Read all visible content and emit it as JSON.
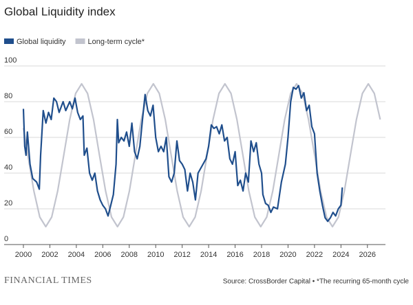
{
  "chart_data": {
    "type": "line",
    "title": "Global Liquidity index",
    "source": "Source: CrossBorder Capital • *The recurring 65-month cycle",
    "publisher": "FINANCIAL TIMES",
    "xlim": [
      2000,
      2027
    ],
    "ylim": [
      0,
      100
    ],
    "xticks": [
      2000,
      2002,
      2004,
      2006,
      2008,
      2010,
      2012,
      2014,
      2016,
      2018,
      2020,
      2022,
      2024,
      2026
    ],
    "yticks": [
      0,
      20,
      40,
      60,
      80,
      100
    ],
    "grid": true,
    "series": [
      {
        "name": "Global liquidity",
        "color": "#1f4e8c",
        "x": [
          2000.0,
          2000.1,
          2000.2,
          2000.3,
          2000.5,
          2000.7,
          2001.0,
          2001.2,
          2001.3,
          2001.5,
          2001.7,
          2001.9,
          2002.1,
          2002.3,
          2002.5,
          2002.7,
          2003.0,
          2003.2,
          2003.5,
          2003.7,
          2003.9,
          2004.1,
          2004.3,
          2004.5,
          2004.6,
          2004.8,
          2005.0,
          2005.2,
          2005.4,
          2005.6,
          2005.8,
          2006.0,
          2006.2,
          2006.4,
          2006.6,
          2006.8,
          2007.0,
          2007.1,
          2007.2,
          2007.4,
          2007.6,
          2007.8,
          2008.0,
          2008.2,
          2008.4,
          2008.6,
          2008.8,
          2009.0,
          2009.2,
          2009.4,
          2009.6,
          2009.8,
          2010.0,
          2010.2,
          2010.4,
          2010.6,
          2010.8,
          2011.0,
          2011.2,
          2011.4,
          2011.6,
          2011.8,
          2012.0,
          2012.2,
          2012.4,
          2012.6,
          2012.8,
          2013.0,
          2013.2,
          2013.5,
          2013.8,
          2014.0,
          2014.2,
          2014.4,
          2014.6,
          2014.8,
          2015.0,
          2015.2,
          2015.4,
          2015.6,
          2015.8,
          2016.0,
          2016.2,
          2016.4,
          2016.6,
          2016.8,
          2017.0,
          2017.2,
          2017.4,
          2017.6,
          2017.8,
          2018.0,
          2018.1,
          2018.3,
          2018.5,
          2018.7,
          2018.9,
          2019.2,
          2019.5,
          2019.8,
          2020.0,
          2020.2,
          2020.4,
          2020.6,
          2020.8,
          2021.0,
          2021.2,
          2021.4,
          2021.6,
          2021.8,
          2022.0,
          2022.2,
          2022.4,
          2022.6,
          2022.8,
          2023.0,
          2023.2,
          2023.4,
          2023.6,
          2023.8,
          2024.0,
          2024.1
        ],
        "values": [
          76,
          55,
          50,
          63,
          45,
          37,
          35,
          31,
          50,
          75,
          68,
          74,
          70,
          82,
          80,
          74,
          80,
          75,
          80,
          76,
          82,
          74,
          70,
          72,
          50,
          54,
          40,
          36,
          40,
          30,
          25,
          22,
          20,
          16,
          22,
          28,
          45,
          70,
          57,
          60,
          58,
          63,
          55,
          68,
          52,
          48,
          55,
          70,
          84,
          75,
          72,
          78,
          60,
          52,
          55,
          52,
          60,
          38,
          35,
          40,
          58,
          47,
          45,
          42,
          30,
          40,
          35,
          25,
          40,
          44,
          48,
          55,
          67,
          65,
          66,
          62,
          67,
          58,
          60,
          48,
          45,
          52,
          33,
          36,
          30,
          40,
          35,
          58,
          52,
          57,
          45,
          40,
          28,
          23,
          22,
          18,
          21,
          20,
          35,
          45,
          60,
          80,
          88,
          87,
          89,
          82,
          85,
          75,
          78,
          66,
          62,
          40,
          30,
          22,
          15,
          13,
          15,
          18,
          16,
          20,
          22,
          32
        ]
      },
      {
        "name": "Long-term cycle*",
        "color": "#c2c4ce",
        "x": [
          2000.0,
          2000.34,
          2000.79,
          2001.24,
          2001.69,
          2002.14,
          2002.59,
          2003.05,
          2003.5,
          2003.95,
          2004.4,
          2004.85,
          2005.3,
          2005.75,
          2006.21,
          2006.66,
          2007.11,
          2007.56,
          2008.01,
          2008.46,
          2008.91,
          2009.37,
          2009.82,
          2010.27,
          2010.72,
          2011.17,
          2011.62,
          2012.07,
          2012.53,
          2012.98,
          2013.43,
          2013.88,
          2014.33,
          2014.78,
          2015.23,
          2015.69,
          2016.14,
          2016.59,
          2017.04,
          2017.49,
          2017.94,
          2018.39,
          2018.85,
          2019.3,
          2019.75,
          2020.2,
          2020.65,
          2021.1,
          2021.55,
          2022.01,
          2022.46,
          2022.91,
          2023.36,
          2023.81,
          2024.26,
          2024.71,
          2025.17,
          2025.62,
          2026.07,
          2026.52,
          2026.97
        ],
        "values": [
          65.2,
          50,
          30,
          15.4,
          10,
          15.4,
          30,
          50,
          70,
          84.6,
          90,
          84.6,
          70,
          50,
          30,
          15.4,
          10,
          15.4,
          30,
          50,
          70,
          84.6,
          90,
          84.6,
          70,
          50,
          30,
          15.4,
          10,
          15.4,
          30,
          50,
          70,
          84.6,
          90,
          84.6,
          70,
          50,
          30,
          15.4,
          10,
          15.4,
          30,
          50,
          70,
          84.6,
          90,
          84.6,
          70,
          50,
          30,
          15.4,
          10,
          15.4,
          30,
          50,
          70,
          84.6,
          90,
          84.6,
          70
        ]
      }
    ]
  }
}
